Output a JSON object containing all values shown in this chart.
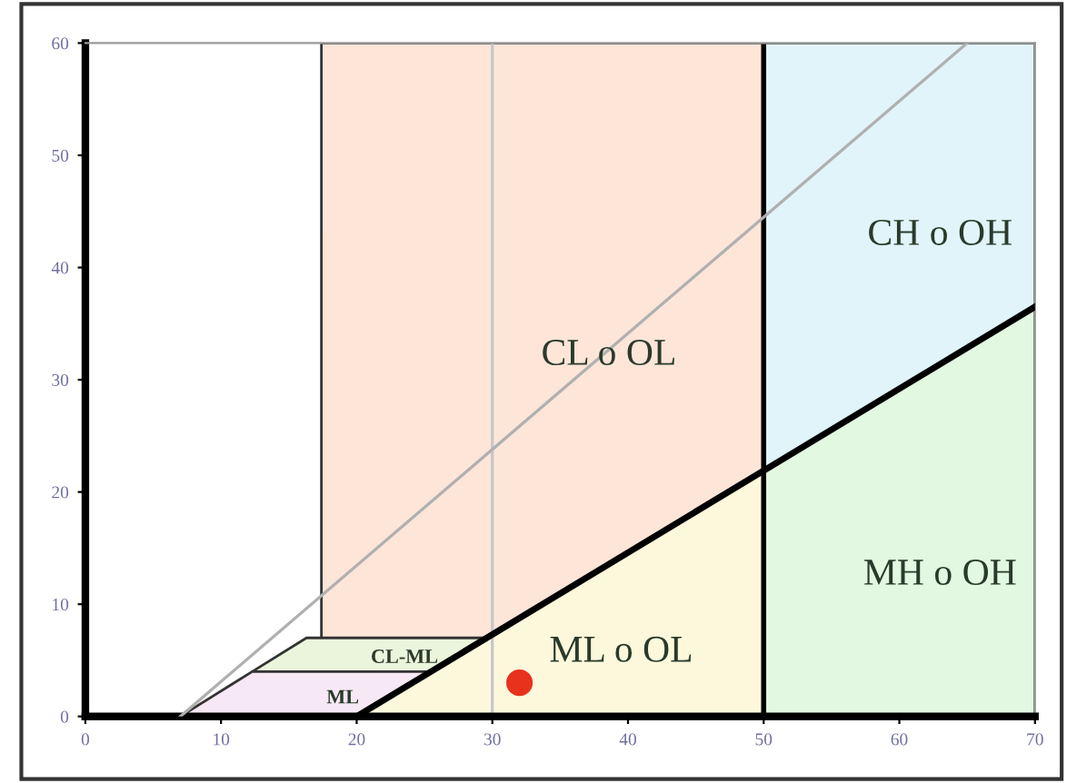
{
  "chart_data": {
    "type": "scatter",
    "xlim": [
      0,
      70
    ],
    "ylim": [
      0,
      60
    ],
    "xticks": [
      0,
      10,
      20,
      30,
      40,
      50,
      60,
      70
    ],
    "yticks": [
      0,
      10,
      20,
      30,
      40,
      50,
      60
    ],
    "series": [
      {
        "type": "area",
        "name": "CL o OL",
        "color": "#fde5d8",
        "x": [
          17.4,
          50
        ],
        "values": [
          60,
          60
        ]
      },
      {
        "type": "area",
        "name": "CH o OH",
        "color": "#e0f4fa",
        "x": [
          50,
          70
        ],
        "values": [
          60,
          60
        ]
      },
      {
        "type": "area",
        "name": "MH o OH",
        "color": "#e2f8e0",
        "x": [
          50,
          70
        ],
        "values": [
          21.9,
          36.5
        ]
      },
      {
        "type": "area",
        "name": "CL-ML",
        "color": "#eaf5dc",
        "x": [
          12.3,
          16.3,
          25.5,
          29.6
        ],
        "values": [
          4,
          7,
          7,
          7
        ]
      },
      {
        "type": "area",
        "name": "ML",
        "color": "#f7e8f5",
        "x": [
          7,
          12.3,
          20,
          25.5
        ],
        "values": [
          0,
          4,
          4,
          4
        ]
      },
      {
        "type": "area",
        "name": "ML o OL",
        "color": "#fdf8dc",
        "x": [
          20,
          50
        ],
        "values": [
          0,
          21.9
        ]
      },
      {
        "type": "line",
        "color": "#b0b0b0",
        "x": [
          7,
          65
        ],
        "values": [
          0,
          60
        ]
      },
      {
        "type": "line",
        "color": "#000000",
        "x": [
          20,
          70
        ],
        "values": [
          0,
          36.5
        ]
      },
      {
        "color": "#e8321e",
        "x": [
          32
        ],
        "values": [
          3
        ],
        "marker": "circle"
      }
    ],
    "ref_lines": [
      {
        "axis": "x",
        "value": 30,
        "color": "#c8c8c8"
      },
      {
        "axis": "x",
        "value": 50,
        "color": "#000000"
      }
    ]
  }
}
